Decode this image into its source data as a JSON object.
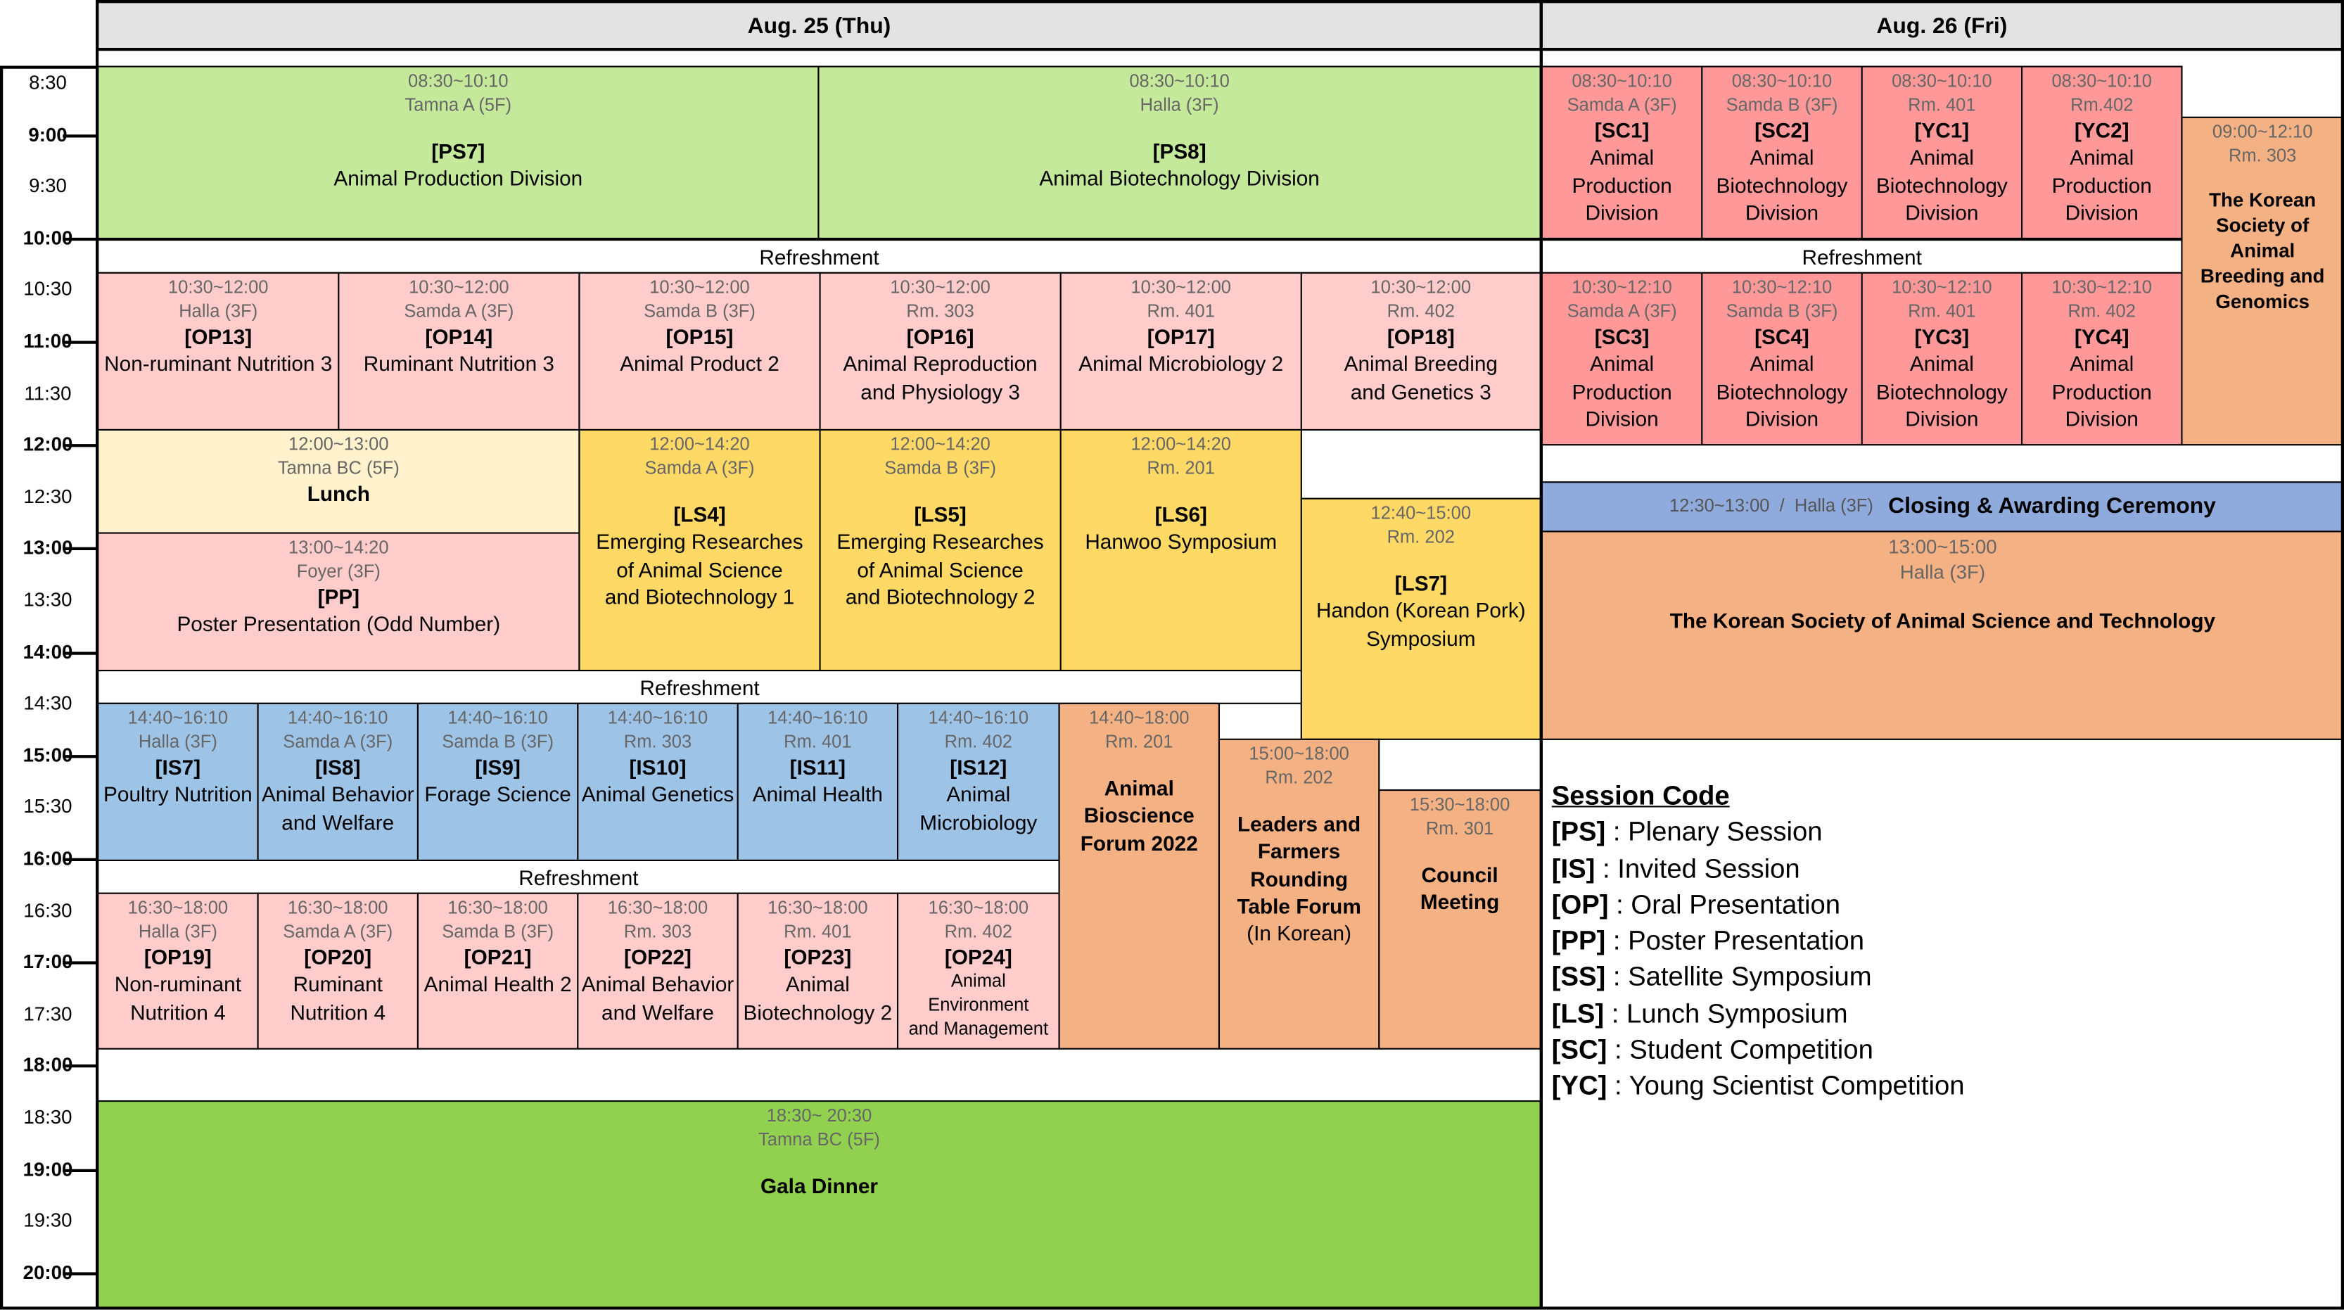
{
  "days": {
    "thu": "Aug. 25 (Thu)",
    "fri": "Aug. 26 (Fri)"
  },
  "time_labels": [
    {
      "label": "8:30",
      "bold": false
    },
    {
      "label": "9:00",
      "bold": true
    },
    {
      "label": "9:30",
      "bold": false
    },
    {
      "label": "10:00",
      "bold": true
    },
    {
      "label": "10:30",
      "bold": false
    },
    {
      "label": "11:00",
      "bold": true
    },
    {
      "label": "11:30",
      "bold": false
    },
    {
      "label": "12:00",
      "bold": true
    },
    {
      "label": "12:30",
      "bold": false
    },
    {
      "label": "13:00",
      "bold": true
    },
    {
      "label": "13:30",
      "bold": false
    },
    {
      "label": "14:00",
      "bold": true
    },
    {
      "label": "14:30",
      "bold": false
    },
    {
      "label": "15:00",
      "bold": true
    },
    {
      "label": "15:30",
      "bold": false
    },
    {
      "label": "16:00",
      "bold": true
    },
    {
      "label": "16:30",
      "bold": false
    },
    {
      "label": "17:00",
      "bold": true
    },
    {
      "label": "17:30",
      "bold": false
    },
    {
      "label": "18:00",
      "bold": true
    },
    {
      "label": "18:30",
      "bold": false
    },
    {
      "label": "19:00",
      "bold": true
    },
    {
      "label": "19:30",
      "bold": false
    },
    {
      "label": "20:00",
      "bold": true
    }
  ],
  "colors": {
    "plenary": "#c5e99b",
    "oral": "#ffcccc",
    "lunch": "#fff2cc",
    "lunch_symposium": "#ffd966",
    "invited": "#9dc3e6",
    "orange": "#f4b183",
    "competition": "#ff9999",
    "closing": "#8faadc",
    "gala": "#92d050"
  },
  "refreshment": "Refreshment",
  "thu": {
    "ps7": {
      "time": "08:30~10:10",
      "room": "Tamna A (5F)",
      "code": "[PS7]",
      "name": "Animal Production Division"
    },
    "ps8": {
      "time": "08:30~10:10",
      "room": "Halla (3F)",
      "code": "[PS8]",
      "name": "Animal Biotechnology Division"
    },
    "op13": {
      "time": "10:30~12:00",
      "room": "Halla (3F)",
      "code": "[OP13]",
      "name": "Non-ruminant Nutrition 3"
    },
    "op14": {
      "time": "10:30~12:00",
      "room": "Samda A (3F)",
      "code": "[OP14]",
      "name": "Ruminant Nutrition 3"
    },
    "op15": {
      "time": "10:30~12:00",
      "room": "Samda B (3F)",
      "code": "[OP15]",
      "name": "Animal Product 2"
    },
    "op16": {
      "time": "10:30~12:00",
      "room": "Rm. 303",
      "code": "[OP16]",
      "name1": "Animal Reproduction",
      "name2": "and Physiology 3"
    },
    "op17": {
      "time": "10:30~12:00",
      "room": "Rm. 401",
      "code": "[OP17]",
      "name": "Animal Microbiology 2"
    },
    "op18": {
      "time": "10:30~12:00",
      "room": "Rm. 402",
      "code": "[OP18]",
      "name1": "Animal Breeding",
      "name2": "and Genetics 3"
    },
    "lunch": {
      "time": "12:00~13:00",
      "room": "Tamna BC (5F)",
      "name": "Lunch"
    },
    "pp": {
      "time": "13:00~14:20",
      "room": "Foyer (3F)",
      "code": "[PP]",
      "name": "Poster Presentation (Odd Number)"
    },
    "ls4": {
      "time": "12:00~14:20",
      "room": "Samda A (3F)",
      "code": "[LS4]",
      "name1": "Emerging Researches",
      "name2": "of Animal Science",
      "name3": "and Biotechnology 1"
    },
    "ls5": {
      "time": "12:00~14:20",
      "room": "Samda B (3F)",
      "code": "[LS5]",
      "name1": "Emerging Researches",
      "name2": "of Animal Science",
      "name3": "and Biotechnology 2"
    },
    "ls6": {
      "time": "12:00~14:20",
      "room": "Rm. 201",
      "code": "[LS6]",
      "name": "Hanwoo Symposium"
    },
    "ls7": {
      "time": "12:40~15:00",
      "room": "Rm. 202",
      "code": "[LS7]",
      "name1": "Handon (Korean Pork)",
      "name2": "Symposium"
    },
    "is7": {
      "time": "14:40~16:10",
      "room": "Halla (3F)",
      "code": "[IS7]",
      "name": "Poultry Nutrition"
    },
    "is8": {
      "time": "14:40~16:10",
      "room": "Samda A (3F)",
      "code": "[IS8]",
      "name1": "Animal Behavior",
      "name2": "and Welfare"
    },
    "is9": {
      "time": "14:40~16:10",
      "room": "Samda B (3F)",
      "code": "[IS9]",
      "name": "Forage Science"
    },
    "is10": {
      "time": "14:40~16:10",
      "room": "Rm. 303",
      "code": "[IS10]",
      "name": "Animal Genetics"
    },
    "is11": {
      "time": "14:40~16:10",
      "room": "Rm. 401",
      "code": "[IS11]",
      "name": "Animal Health"
    },
    "is12": {
      "time": "14:40~16:10",
      "room": "Rm. 402",
      "code": "[IS12]",
      "name1": "Animal",
      "name2": "Microbiology"
    },
    "abf": {
      "time": "14:40~18:00",
      "room": "Rm. 201",
      "name1": "Animal",
      "name2": "Bioscience",
      "name3": "Forum 2022"
    },
    "lfr": {
      "time": "15:00~18:00",
      "room": "Rm. 202",
      "name1": "Leaders and",
      "name2": "Farmers",
      "name3": "Rounding",
      "name4": "Table Forum",
      "name5": "(In Korean)"
    },
    "council": {
      "time": "15:30~18:00",
      "room": "Rm. 301",
      "name1": "Council",
      "name2": "Meeting"
    },
    "op19": {
      "time": "16:30~18:00",
      "room": "Halla (3F)",
      "code": "[OP19]",
      "name1": "Non-ruminant",
      "name2": "Nutrition 4"
    },
    "op20": {
      "time": "16:30~18:00",
      "room": "Samda A (3F)",
      "code": "[OP20]",
      "name1": "Ruminant",
      "name2": "Nutrition 4"
    },
    "op21": {
      "time": "16:30~18:00",
      "room": "Samda B (3F)",
      "code": "[OP21]",
      "name": "Animal Health 2"
    },
    "op22": {
      "time": "16:30~18:00",
      "room": "Rm. 303",
      "code": "[OP22]",
      "name1": "Animal Behavior",
      "name2": "and Welfare"
    },
    "op23": {
      "time": "16:30~18:00",
      "room": "Rm. 401",
      "code": "[OP23]",
      "name1": "Animal",
      "name2": "Biotechnology 2"
    },
    "op24": {
      "time": "16:30~18:00",
      "room": "Rm. 402",
      "code": "[OP24]",
      "name1": "Animal Environment",
      "name2": "and Management"
    },
    "gala": {
      "time": "18:30~ 20:30",
      "room": "Tamna BC (5F)",
      "name": "Gala Dinner"
    }
  },
  "fri": {
    "sc1": {
      "time": "08:30~10:10",
      "room": "Samda A (3F)",
      "code": "[SC1]",
      "name1": "Animal",
      "name2": "Production",
      "name3": "Division"
    },
    "sc2": {
      "time": "08:30~10:10",
      "room": "Samda B (3F)",
      "code": "[SC2]",
      "name1": "Animal",
      "name2": "Biotechnology",
      "name3": "Division"
    },
    "yc1": {
      "time": "08:30~10:10",
      "room": "Rm. 401",
      "code": "[YC1]",
      "name1": "Animal",
      "name2": "Biotechnology",
      "name3": "Division"
    },
    "yc2": {
      "time": "08:30~10:10",
      "room": "Rm.402",
      "code": "[YC2]",
      "name1": "Animal",
      "name2": "Production",
      "name3": "Division"
    },
    "ksab": {
      "time": "09:00~12:10",
      "room": "Rm. 303",
      "name1": "The Korean",
      "name2": "Society of Animal",
      "name3": "Breeding and",
      "name4": "Genomics"
    },
    "sc3": {
      "time": "10:30~12:10",
      "room": "Samda A (3F)",
      "code": "[SC3]",
      "name1": "Animal",
      "name2": "Production",
      "name3": "Division"
    },
    "sc4": {
      "time": "10:30~12:10",
      "room": "Samda B (3F)",
      "code": "[SC4]",
      "name1": "Animal",
      "name2": "Biotechnology",
      "name3": "Division"
    },
    "yc3": {
      "time": "10:30~12:10",
      "room": "Rm. 401",
      "code": "[YC3]",
      "name1": "Animal",
      "name2": "Biotechnology",
      "name3": "Division"
    },
    "yc4": {
      "time": "10:30~12:10",
      "room": "Rm. 402",
      "code": "[YC4]",
      "name1": "Animal",
      "name2": "Production",
      "name3": "Division"
    },
    "closing": {
      "time": "12:30~13:00  /  Halla (3F)",
      "name": "Closing & Awarding Ceremony"
    },
    "ksast": {
      "time": "13:00~15:00",
      "room": "Halla (3F)",
      "name": "The Korean Society of Animal Science and Technology"
    }
  },
  "legend": {
    "title": "Session Code",
    "items": [
      {
        "code": "[PS]",
        "desc": " : Plenary Session"
      },
      {
        "code": "[IS]",
        "desc": " : Invited Session"
      },
      {
        "code": "[OP]",
        "desc": " : Oral Presentation"
      },
      {
        "code": "[PP]",
        "desc": " : Poster Presentation"
      },
      {
        "code": "[SS]",
        "desc": " : Satellite Symposium"
      },
      {
        "code": "[LS]",
        "desc": " : Lunch Symposium"
      },
      {
        "code": "[SC]",
        "desc": " : Student Competition"
      },
      {
        "code": "[YC]",
        "desc": " : Young Scientist Competition"
      }
    ]
  }
}
